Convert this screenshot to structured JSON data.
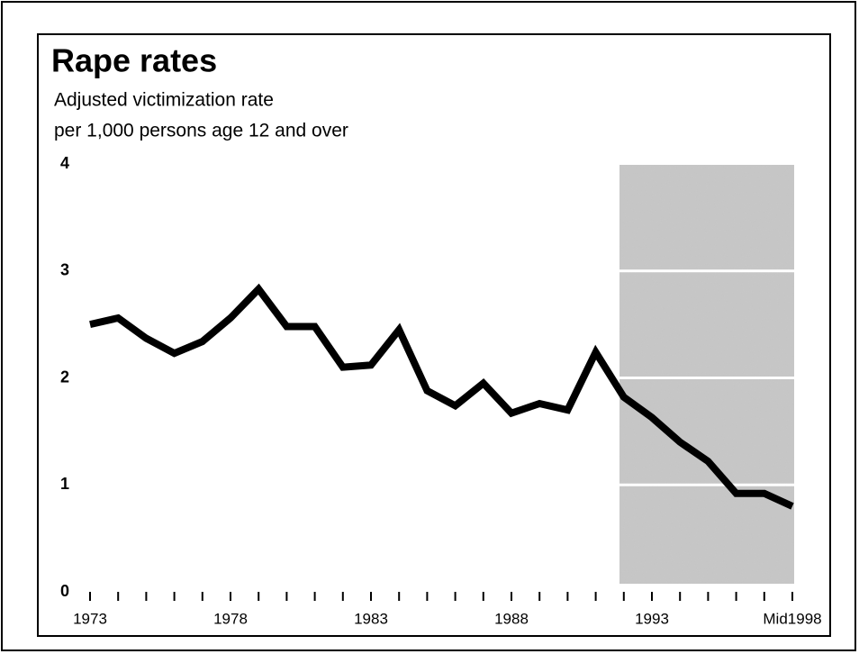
{
  "chart_data": {
    "type": "line",
    "title": "Rape rates",
    "subtitle": [
      "Adjusted victimization rate",
      "per 1,000 persons age 12 and over"
    ],
    "x": [
      1973,
      1974,
      1975,
      1976,
      1977,
      1978,
      1979,
      1980,
      1981,
      1982,
      1983,
      1984,
      1985,
      1986,
      1987,
      1988,
      1989,
      1990,
      1991,
      1992,
      1993,
      1994,
      1995,
      1996,
      1997,
      1998
    ],
    "values": [
      2.5,
      2.56,
      2.37,
      2.23,
      2.34,
      2.56,
      2.83,
      2.48,
      2.48,
      2.1,
      2.12,
      2.45,
      1.88,
      1.74,
      1.95,
      1.67,
      1.76,
      1.7,
      2.24,
      1.82,
      1.63,
      1.4,
      1.22,
      0.92,
      0.92,
      0.8
    ],
    "color": "#000000",
    "xlim": [
      1973,
      1998
    ],
    "xticks": [
      1973,
      1978,
      1983,
      1988,
      1993,
      {
        "value": 1998,
        "label": "Mid1998"
      }
    ],
    "ylim": [
      0,
      4
    ],
    "yticks": [
      0,
      1,
      2,
      3,
      4
    ]
  }
}
